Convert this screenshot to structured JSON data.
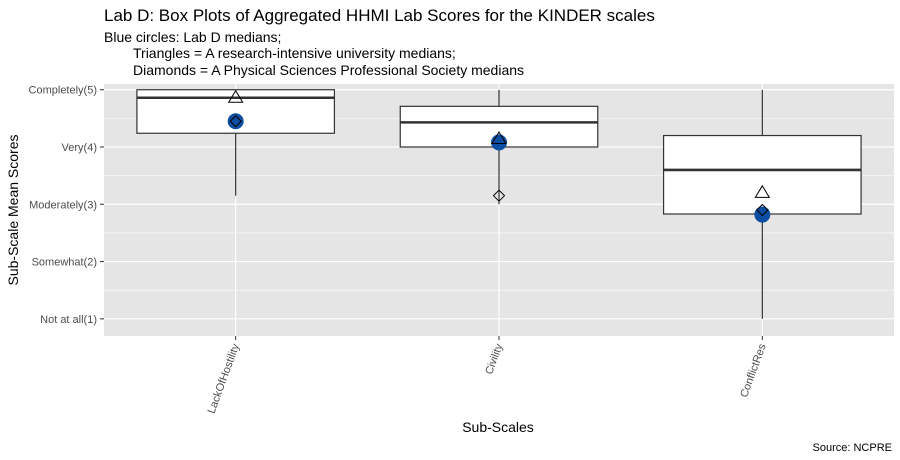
{
  "chart_data": {
    "type": "box",
    "title": "Lab D: Box Plots of Aggregated HHMI Lab Scores for the KINDER scales",
    "subtitle_lines": [
      "Blue circles: Lab D medians;",
      "Triangles = A research-intensive university medians;",
      "Diamonds = A Physical Sciences Professional Society medians"
    ],
    "xlabel": "Sub-Scales",
    "ylabel": "Sub-Scale Mean Scores",
    "caption": "Source: NCPRE",
    "ylim": [
      0.7,
      5.1
    ],
    "y_ticks": [
      1,
      2,
      3,
      4,
      5
    ],
    "y_tick_labels": [
      "Not at all(1)",
      "Somewhat(2)",
      "Moderately(3)",
      "Very(4)",
      "Completely(5)"
    ],
    "grid": true,
    "categories": [
      "LackOfHostility",
      "Civility",
      "ConflictRes"
    ],
    "boxes": [
      {
        "category": "LackOfHostility",
        "whisker_low": 3.15,
        "q1": 4.24,
        "median": 4.86,
        "q3": 5.0,
        "whisker_high": 5.0
      },
      {
        "category": "Civility",
        "whisker_low": 3.0,
        "q1": 4.0,
        "median": 4.43,
        "q3": 4.71,
        "whisker_high": 5.0
      },
      {
        "category": "ConflictRes",
        "whisker_low": 1.0,
        "q1": 2.83,
        "median": 3.6,
        "q3": 4.2,
        "whisker_high": 5.0
      }
    ],
    "markers": [
      {
        "name": "Lab D medians",
        "shape": "circle",
        "color": "#0b4ea2",
        "values": [
          4.45,
          4.08,
          2.82
        ]
      },
      {
        "name": "Research-intensive university medians",
        "shape": "triangle",
        "color": "#000000",
        "values": [
          4.86,
          4.14,
          3.2
        ]
      },
      {
        "name": "Physical Sciences Professional Society medians",
        "shape": "diamond",
        "color": "#000000",
        "values": [
          4.45,
          3.15,
          2.9
        ]
      }
    ],
    "colors": {
      "panel": "#e5e5e5",
      "grid": "#ffffff",
      "box_fill": "#ffffff",
      "box_stroke": "#333333"
    }
  }
}
